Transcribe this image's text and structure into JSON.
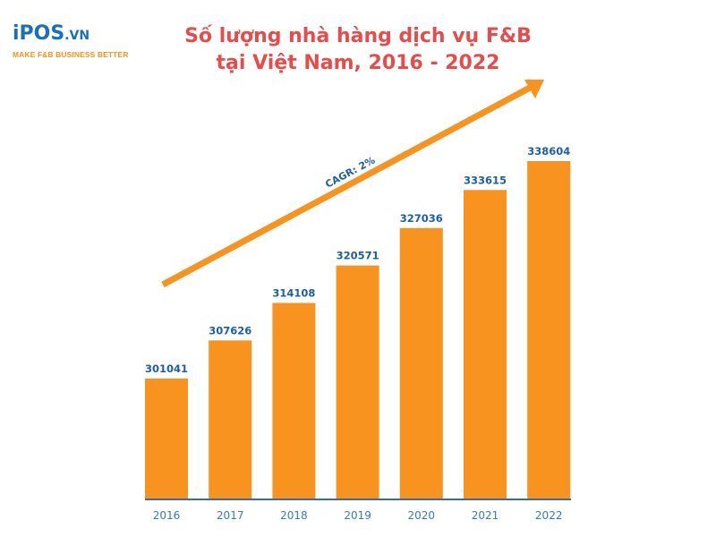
{
  "logo": {
    "brand": "iPOS",
    "suffix": ".VN",
    "tagline": "MAKE F&B BUSINESS BETTER"
  },
  "title": {
    "line1": "Số lượng nhà hàng dịch vụ F&B",
    "line2": "tại Việt Nam, 2016 - 2022"
  },
  "annotation": {
    "cagr": "CAGR: 2%"
  },
  "colors": {
    "bar": "#f7931e",
    "title": "#e84c4a",
    "value_labels": "#1d5fa3",
    "axis": "#2f6fad"
  },
  "chart_data": {
    "type": "bar",
    "title": "Số lượng nhà hàng dịch vụ F&B tại Việt Nam, 2016 - 2022",
    "categories": [
      "2016",
      "2017",
      "2018",
      "2019",
      "2020",
      "2021",
      "2022"
    ],
    "values": [
      301041,
      307626,
      314108,
      320571,
      327036,
      333615,
      338604
    ],
    "xlabel": "",
    "ylabel": "",
    "annotations": [
      "CAGR: 2%"
    ],
    "grid": false,
    "legend": "none",
    "data_labels": true
  }
}
